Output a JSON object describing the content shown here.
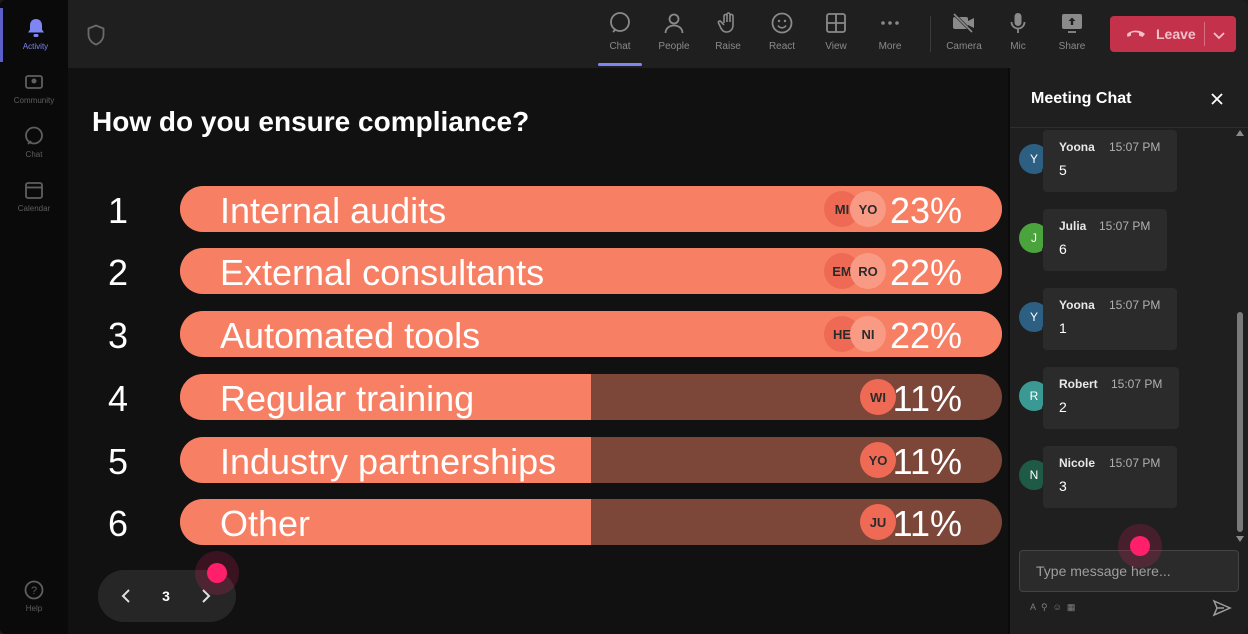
{
  "rail": {
    "items": [
      {
        "label": "Activity",
        "icon": "bell-icon"
      },
      {
        "label": "Community",
        "icon": "community-icon"
      },
      {
        "label": "Chat",
        "icon": "chat-icon"
      },
      {
        "label": "Calendar",
        "icon": "calendar-icon"
      },
      {
        "label": "Help",
        "icon": "help-icon"
      }
    ]
  },
  "toolbar": {
    "chat": "Chat",
    "people": "People",
    "raise": "Raise",
    "react": "React",
    "view": "View",
    "more": "More",
    "camera": "Camera",
    "mic": "Mic",
    "share": "Share",
    "leave": "Leave"
  },
  "poll": {
    "question": "How do you ensure compliance?",
    "options": [
      {
        "num": "1",
        "label": "Internal audits",
        "pct": "23%",
        "fill": 1.0,
        "avatars": [
          "MI",
          "YO"
        ]
      },
      {
        "num": "2",
        "label": "External consultants",
        "pct": "22%",
        "fill": 1.0,
        "avatars": [
          "EM",
          "RO"
        ]
      },
      {
        "num": "3",
        "label": "Automated tools",
        "pct": "22%",
        "fill": 1.0,
        "avatars": [
          "HE",
          "NI"
        ]
      },
      {
        "num": "4",
        "label": "Regular training",
        "pct": "11%",
        "fill": 0.5,
        "avatars": [
          "WI"
        ]
      },
      {
        "num": "5",
        "label": "Industry partnerships",
        "pct": "11%",
        "fill": 0.5,
        "avatars": [
          "YO"
        ]
      },
      {
        "num": "6",
        "label": "Other",
        "pct": "11%",
        "fill": 0.5,
        "avatars": [
          "JU"
        ]
      }
    ],
    "page": "3"
  },
  "chat": {
    "title": "Meeting Chat",
    "messages": [
      {
        "initial": "Y",
        "name": "Yoona",
        "time": "15:07 PM",
        "text": "5",
        "color": "#2d5f83"
      },
      {
        "initial": "J",
        "name": "Julia",
        "time": "15:07 PM",
        "text": "6",
        "color": "#4aa33c"
      },
      {
        "initial": "Y",
        "name": "Yoona",
        "time": "15:07 PM",
        "text": "1",
        "color": "#2d5f83"
      },
      {
        "initial": "R",
        "name": "Robert",
        "time": "15:07 PM",
        "text": "2",
        "color": "#3a9a93"
      },
      {
        "initial": "N",
        "name": "Nicole",
        "time": "15:07 PM",
        "text": "3",
        "color": "#1e5a45"
      }
    ],
    "placeholder": "Type message here..."
  },
  "colors": {
    "bar_fill": "#f77f64",
    "bar_track": "#7c4638",
    "leave": "#c4314b",
    "accent": "#7f85f5",
    "cursor_dot": "#ff1f6a"
  }
}
